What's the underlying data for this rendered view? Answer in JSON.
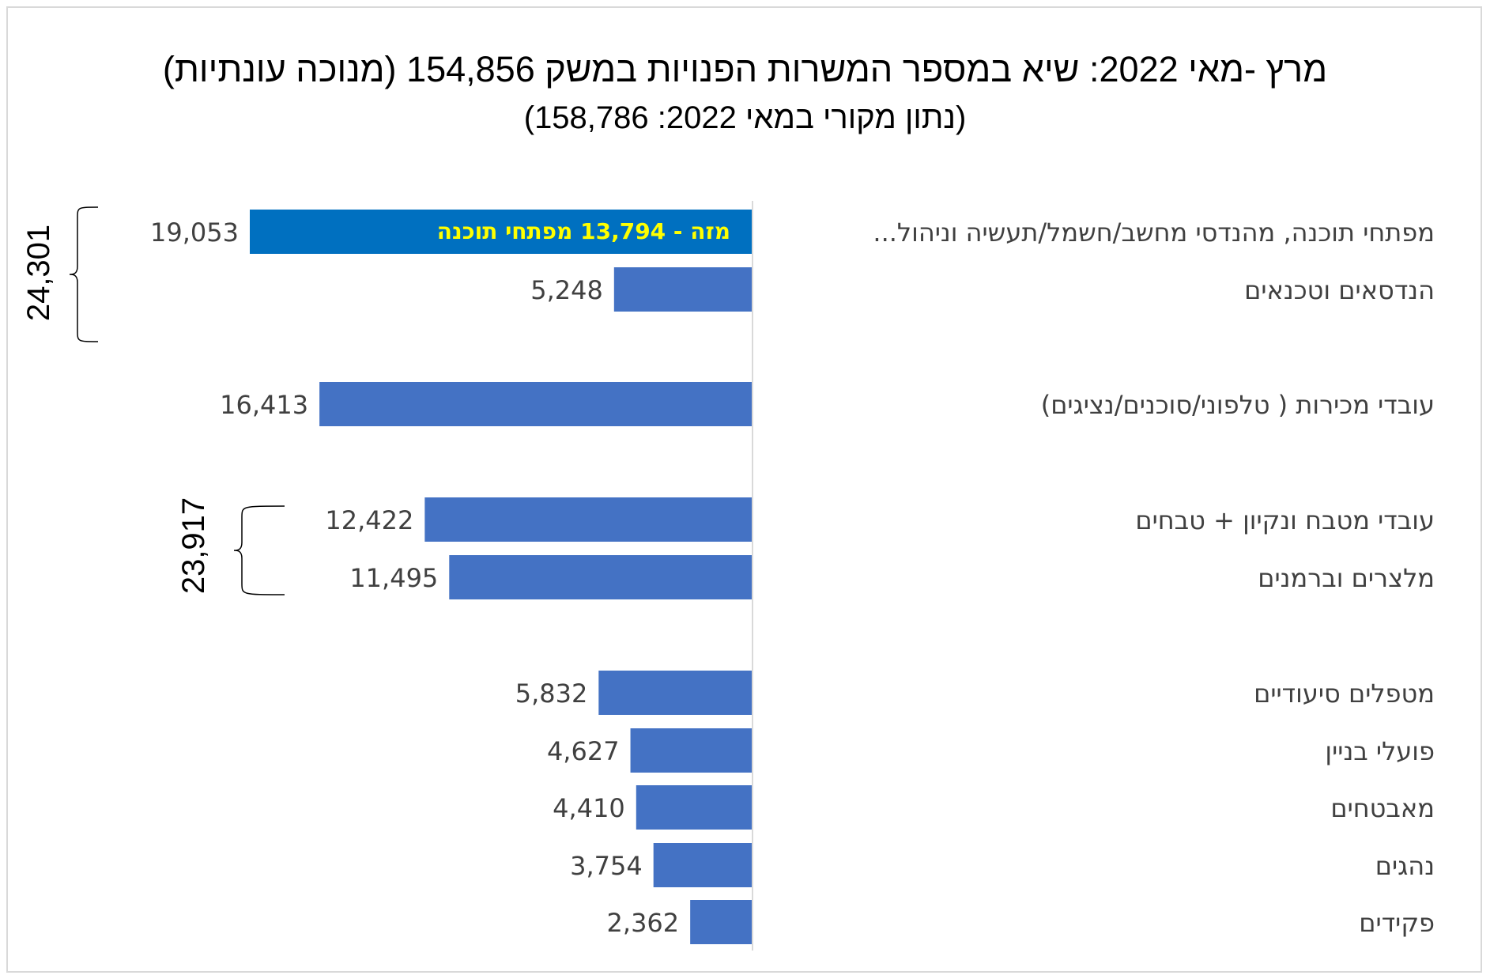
{
  "chart_data": {
    "type": "bar",
    "orientation": "horizontal",
    "title": "מרץ -מאי 2022: שיא במספר המשרות הפנויות במשק  154,856 (מנוכה עונתיות)",
    "subtitle": "(נתון מקורי במאי 2022: 158,786)",
    "categories": [
      "מפתחי תוכנה, מהנדסי מחשב/חשמל/תעשיה וניהול...",
      "הנדסאים וטכנאים",
      "עובדי מכירות ( טלפוני/סוכנים/נציגים)",
      "עובדי מטבח ונקיון + טבחים",
      "מלצרים וברמנים",
      "מטפלים סיעודיים",
      "פועלי  בניין",
      "מאבטחים",
      "נהגים",
      "פקידים"
    ],
    "values": [
      19053,
      5248,
      16413,
      12422,
      11495,
      5832,
      4627,
      4410,
      3754,
      2362
    ],
    "value_labels": [
      "19,053",
      "5,248",
      "16,413",
      "12,422",
      "11,495",
      "5,832",
      "4,627",
      "4,410",
      "3,754",
      "2,362"
    ],
    "bar_colors": [
      "#0070c0",
      "#4472c4",
      "#4472c4",
      "#4472c4",
      "#4472c4",
      "#4472c4",
      "#4472c4",
      "#4472c4",
      "#4472c4",
      "#4472c4"
    ],
    "annotations": {
      "first_bar_text": "מזה - 13,794 מפתחי תוכנה",
      "group_totals": [
        {
          "label": "24,301",
          "covers": [
            0,
            1
          ]
        },
        {
          "label": "23,917",
          "covers": [
            3,
            4
          ]
        }
      ]
    },
    "xlim": [
      0,
      19053
    ],
    "direction": "bars extend leftward from axis",
    "grid": false,
    "legend": "none"
  },
  "colors": {
    "highlight_bar": "#0070c0",
    "bar": "#4472c4",
    "annotation_text": "#ffff00",
    "axis": "#d9d9d9",
    "label_text": "#404040"
  }
}
